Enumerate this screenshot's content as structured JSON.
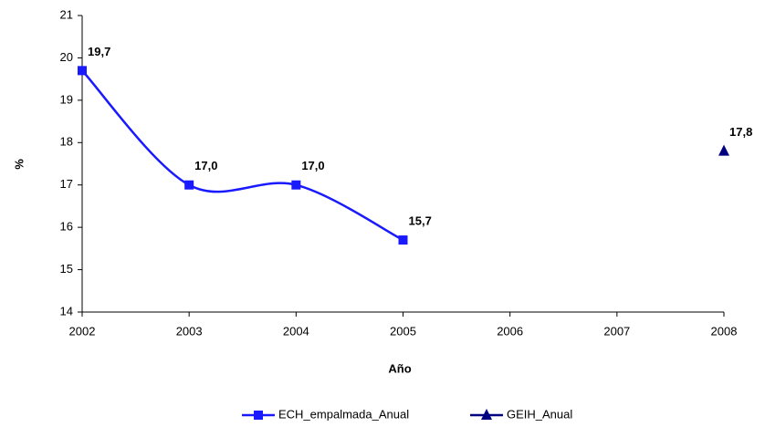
{
  "chart_data": {
    "type": "line",
    "x": [
      2002,
      2003,
      2004,
      2005,
      2006,
      2007,
      2008
    ],
    "series": [
      {
        "name": "ECH_empalmada_Anual",
        "color": "#1a1aff",
        "marker": "square",
        "values": [
          19.7,
          17.0,
          17.0,
          15.7,
          null,
          null,
          null
        ],
        "value_labels": [
          "19,7",
          "17,0",
          "17,0",
          "15,7",
          null,
          null,
          null
        ]
      },
      {
        "name": "GEIH_Anual",
        "color": "#000080",
        "marker": "triangle",
        "values": [
          null,
          null,
          null,
          null,
          null,
          null,
          17.8
        ],
        "value_labels": [
          null,
          null,
          null,
          null,
          null,
          null,
          "17,8"
        ]
      }
    ],
    "xlabel": "Año",
    "ylabel": "%",
    "xlim": [
      2002,
      2008
    ],
    "xticks": [
      2002,
      2003,
      2004,
      2005,
      2006,
      2007,
      2008
    ],
    "ylim": [
      14,
      21
    ],
    "yticks": [
      14,
      15,
      16,
      17,
      18,
      19,
      20,
      21
    ],
    "smooth": true,
    "grid": false,
    "legend": "bottom"
  }
}
